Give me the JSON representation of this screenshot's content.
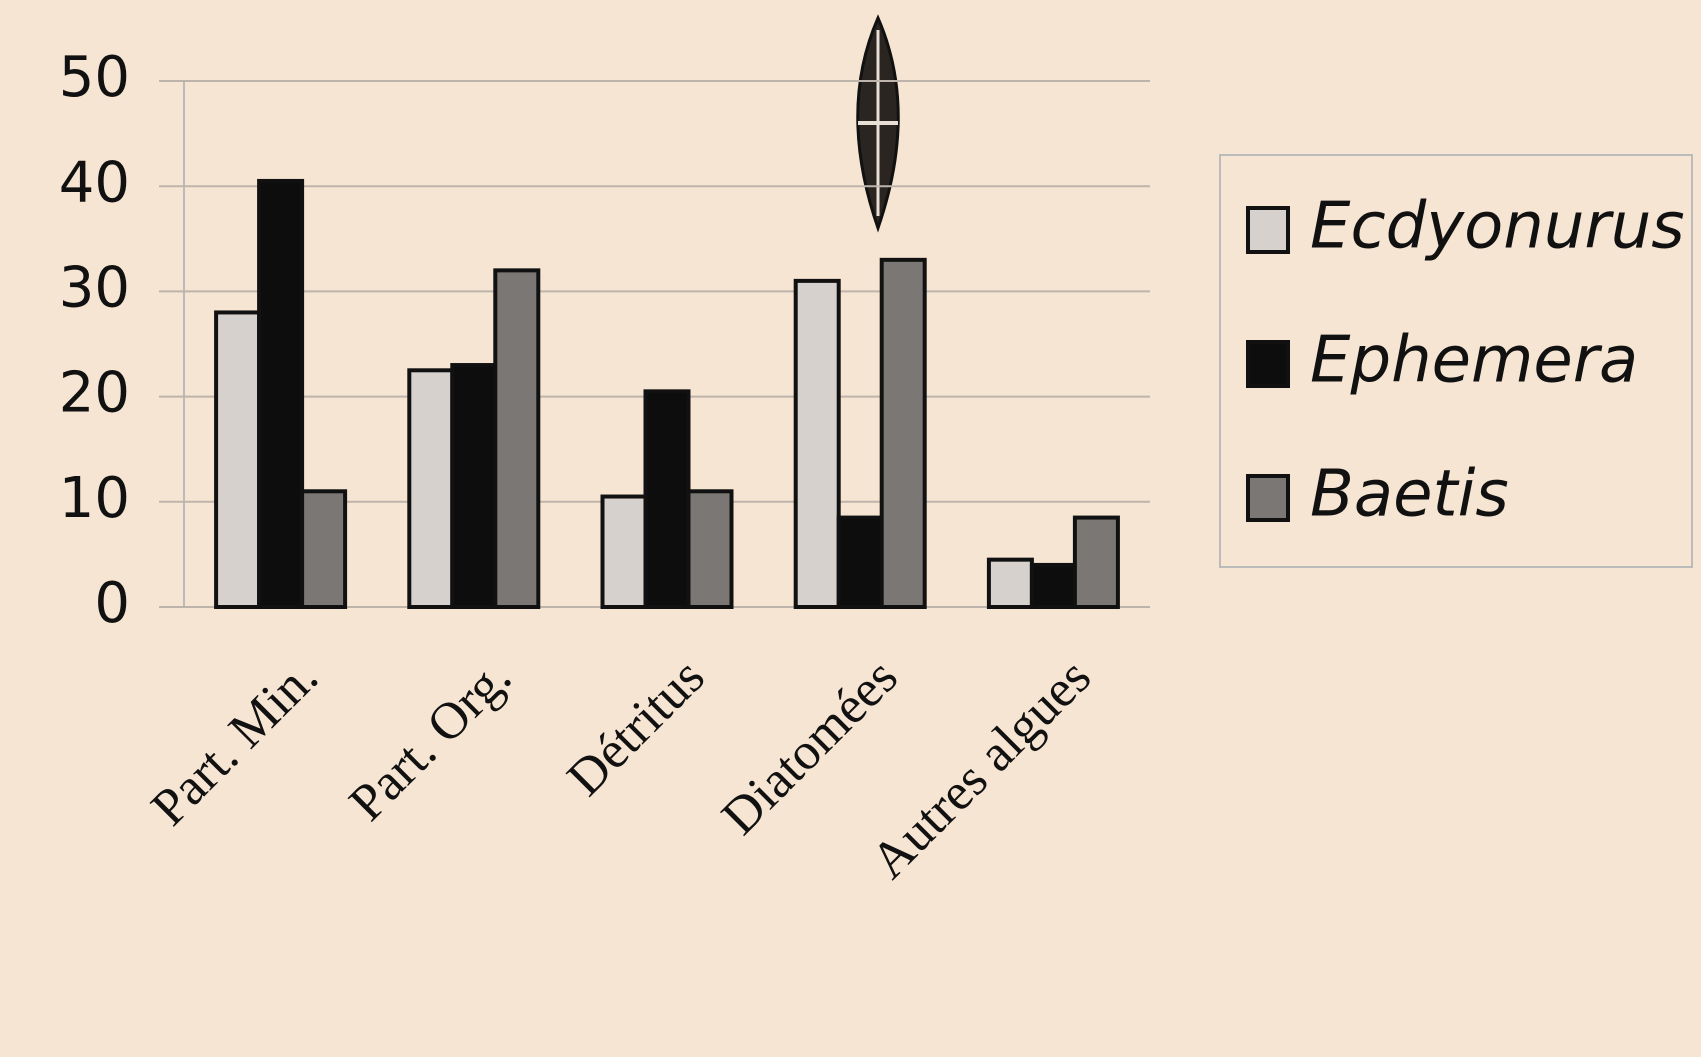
{
  "chart_data": {
    "type": "bar",
    "categories": [
      "Part. Min.",
      "Part. Org.",
      "Détritus",
      "Diatomées",
      "Autres algues"
    ],
    "series": [
      {
        "name": "Ecdyonurus",
        "color": "#d6d1cc",
        "values": [
          28,
          22.5,
          10.5,
          31,
          4.5
        ]
      },
      {
        "name": "Ephemera",
        "color": "#0d0d0d",
        "values": [
          40.5,
          23,
          20.5,
          8.5,
          4
        ]
      },
      {
        "name": "Baetis",
        "color": "#7a7775",
        "values": [
          11,
          32,
          11,
          33,
          8.5
        ]
      }
    ],
    "ylim": [
      0,
      50
    ],
    "yticks": [
      0,
      10,
      20,
      30,
      40,
      50
    ],
    "grid": true,
    "legend": "right"
  }
}
